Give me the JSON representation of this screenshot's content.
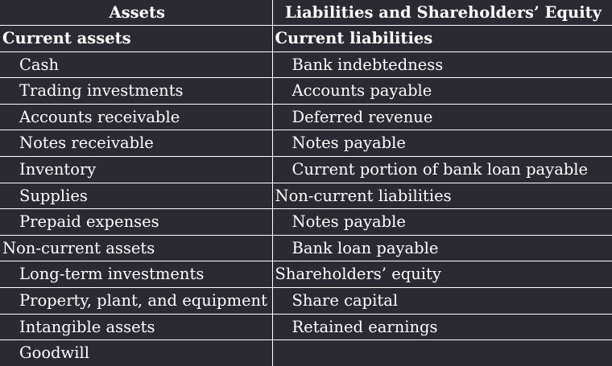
{
  "table": {
    "headers": [
      "Assets",
      "Liabilities and Shareholders’ Equity"
    ],
    "rows": [
      [
        {
          "text": "Current assets",
          "style": "bold"
        },
        {
          "text": "Current liabilities",
          "style": "bold"
        }
      ],
      [
        {
          "text": "Cash",
          "style": "indent"
        },
        {
          "text": "Bank indebtedness",
          "style": "indent"
        }
      ],
      [
        {
          "text": "Trading investments",
          "style": "indent"
        },
        {
          "text": "Accounts payable",
          "style": "indent"
        }
      ],
      [
        {
          "text": "Accounts receivable",
          "style": "indent"
        },
        {
          "text": "Deferred revenue",
          "style": "indent"
        }
      ],
      [
        {
          "text": "Notes receivable",
          "style": "indent"
        },
        {
          "text": "Notes payable",
          "style": "indent"
        }
      ],
      [
        {
          "text": "Inventory",
          "style": "indent"
        },
        {
          "text": "Current portion of bank loan payable",
          "style": "indent"
        }
      ],
      [
        {
          "text": "Supplies",
          "style": "indent"
        },
        {
          "text": "Non-current liabilities",
          "style": "plain"
        }
      ],
      [
        {
          "text": "Prepaid expenses",
          "style": "indent"
        },
        {
          "text": "Notes payable",
          "style": "indent"
        }
      ],
      [
        {
          "text": "Non-current assets",
          "style": "plain"
        },
        {
          "text": "Bank loan payable",
          "style": "indent"
        }
      ],
      [
        {
          "text": "Long-term investments",
          "style": "indent"
        },
        {
          "text": "Shareholders’ equity",
          "style": "plain"
        }
      ],
      [
        {
          "text": "Property, plant, and equipment",
          "style": "indent"
        },
        {
          "text": "Share capital",
          "style": "indent"
        }
      ],
      [
        {
          "text": "Intangible assets",
          "style": "indent"
        },
        {
          "text": "Retained earnings",
          "style": "indent"
        }
      ],
      [
        {
          "text": "Goodwill",
          "style": "indent"
        },
        {
          "text": "",
          "style": "plain"
        }
      ]
    ]
  }
}
